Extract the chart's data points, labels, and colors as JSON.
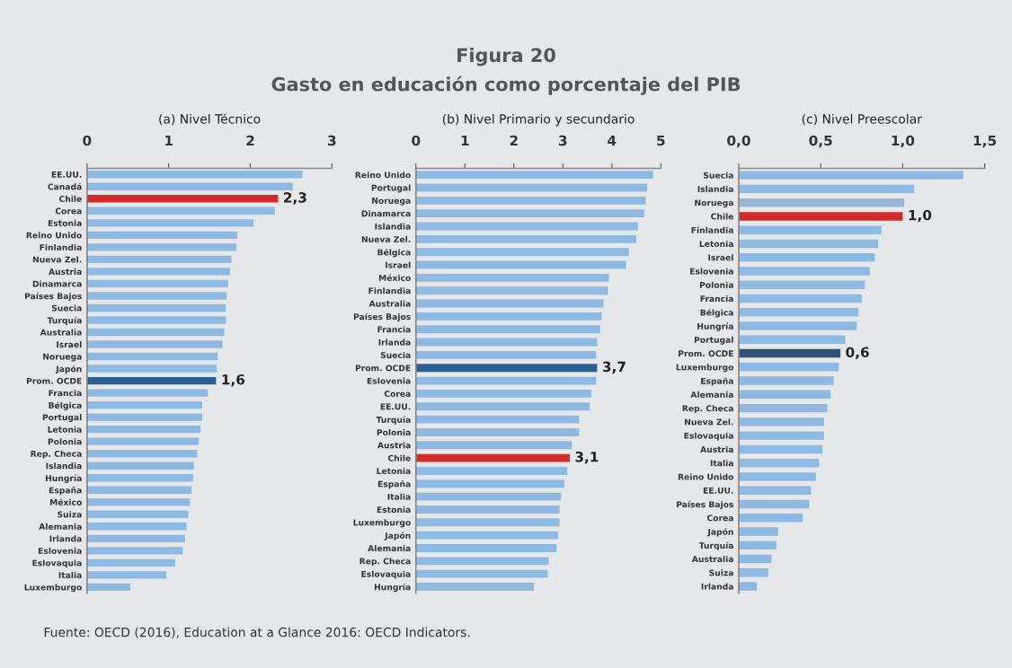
{
  "chart_data": [
    {
      "type": "other",
      "title": "Figura 20",
      "subtitle": "Gasto en educación como porcentaje del PIB",
      "annotations": [
        "Fuente: OECD (2016), Education at a Glance 2016: OECD Indicators."
      ]
    },
    {
      "type": "bar",
      "orientation": "horizontal",
      "title": "(a) Nivel Técnico",
      "grid": false,
      "xlim": [
        0,
        3
      ],
      "xticks": [
        0,
        1,
        2,
        3
      ],
      "categories": [
        "EE.UU.",
        "Canadá",
        "Chile",
        "Corea",
        "Estonia",
        "Reino Unido",
        "Finlandia",
        "Nueva Zel.",
        "Austria",
        "Dinamarca",
        "Países Bajos",
        "Suecia",
        "Turquía",
        "Australia",
        "Israel",
        "Noruega",
        "Japón",
        "Prom. OCDE",
        "Francia",
        "Bélgica",
        "Portugal",
        "Letonia",
        "Polonia",
        "Rep. Checa",
        "Islandia",
        "Hungría",
        "España",
        "México",
        "Suiza",
        "Alemania",
        "Irlanda",
        "Eslovenia",
        "Eslovaquia",
        "Italia",
        "Luxemburgo"
      ],
      "values": [
        2.64,
        2.52,
        2.34,
        2.3,
        2.04,
        1.84,
        1.83,
        1.77,
        1.75,
        1.73,
        1.71,
        1.7,
        1.7,
        1.68,
        1.66,
        1.6,
        1.59,
        1.58,
        1.48,
        1.41,
        1.41,
        1.39,
        1.37,
        1.35,
        1.31,
        1.3,
        1.28,
        1.26,
        1.24,
        1.22,
        1.2,
        1.17,
        1.08,
        0.97,
        0.53
      ],
      "colors": [
        "#8db9e3",
        "#8db9e3",
        "#d42a2a",
        "#8db9e3",
        "#8db9e3",
        "#8db9e3",
        "#8db9e3",
        "#8db9e3",
        "#8db9e3",
        "#8db9e3",
        "#8db9e3",
        "#8db9e3",
        "#8db9e3",
        "#8db9e3",
        "#8db9e3",
        "#8db9e3",
        "#8db9e3",
        "#2a6192",
        "#8db9e3",
        "#8db9e3",
        "#8db9e3",
        "#8db9e3",
        "#8db9e3",
        "#8db9e3",
        "#8db9e3",
        "#8db9e3",
        "#8db9e3",
        "#8db9e3",
        "#8db9e3",
        "#8db9e3",
        "#8db9e3",
        "#8db9e3",
        "#8db9e3",
        "#8db9e3",
        "#8db9e3"
      ],
      "value_labels": [
        null,
        null,
        "2,3",
        null,
        null,
        null,
        null,
        null,
        null,
        null,
        null,
        null,
        null,
        null,
        null,
        null,
        null,
        "1,6",
        null,
        null,
        null,
        null,
        null,
        null,
        null,
        null,
        null,
        null,
        null,
        null,
        null,
        null,
        null,
        null,
        null
      ]
    },
    {
      "type": "bar",
      "orientation": "horizontal",
      "title": "(b) Nivel Primario y secundario",
      "grid": false,
      "xlim": [
        0,
        5
      ],
      "xticks": [
        0,
        1,
        2,
        3,
        4,
        5
      ],
      "categories": [
        "Reino Unido",
        "Portugal",
        "Noruega",
        "Dinamarca",
        "Islandia",
        "Nueva Zel.",
        "Bélgica",
        "Israel",
        "México",
        "Finlandia",
        "Australia",
        "Países Bajos",
        "Francia",
        "Irlanda",
        "Suecia",
        "Prom. OCDE",
        "Eslovenia",
        "Corea",
        "EE.UU.",
        "Turquía",
        "Polonia",
        "Austria",
        "Chile",
        "Letonia",
        "España",
        "Italia",
        "Estonia",
        "Luxemburgo",
        "Japón",
        "Alemania",
        "Rep. Checa",
        "Eslovaquia",
        "Hungría"
      ],
      "values": [
        4.84,
        4.72,
        4.69,
        4.66,
        4.53,
        4.5,
        4.35,
        4.29,
        3.94,
        3.92,
        3.83,
        3.79,
        3.76,
        3.7,
        3.68,
        3.7,
        3.68,
        3.58,
        3.55,
        3.33,
        3.33,
        3.18,
        3.14,
        3.09,
        3.03,
        2.96,
        2.93,
        2.93,
        2.9,
        2.87,
        2.71,
        2.69,
        2.41
      ],
      "colors": [
        "#8db9e3",
        "#8db9e3",
        "#8db9e3",
        "#8db9e3",
        "#8db9e3",
        "#8db9e3",
        "#8db9e3",
        "#8db9e3",
        "#8db9e3",
        "#8db9e3",
        "#8db9e3",
        "#8db9e3",
        "#8db9e3",
        "#8db9e3",
        "#8db9e3",
        "#2a6192",
        "#8db9e3",
        "#8db9e3",
        "#8db9e3",
        "#8db9e3",
        "#8db9e3",
        "#8db9e3",
        "#d42a2a",
        "#8db9e3",
        "#8db9e3",
        "#8db9e3",
        "#8db9e3",
        "#8db9e3",
        "#8db9e3",
        "#8db9e3",
        "#8db9e3",
        "#8db9e3",
        "#8db9e3"
      ],
      "value_labels": [
        null,
        null,
        null,
        null,
        null,
        null,
        null,
        null,
        null,
        null,
        null,
        null,
        null,
        null,
        null,
        "3,7",
        null,
        null,
        null,
        null,
        null,
        null,
        "3,1",
        null,
        null,
        null,
        null,
        null,
        null,
        null,
        null,
        null,
        null
      ]
    },
    {
      "type": "bar",
      "orientation": "horizontal",
      "title": "(c) Nivel Preescolar",
      "grid": false,
      "xlim": [
        0,
        1.5
      ],
      "xticks": [
        {
          "value": 0,
          "label": "0,0"
        },
        {
          "value": 0.5,
          "label": "0,5"
        },
        {
          "value": 1,
          "label": "1,0"
        },
        {
          "value": 1.5,
          "label": "1,5"
        }
      ],
      "categories": [
        "Suecia",
        "Islandia",
        "Noruega",
        "Chile",
        "Finlandia",
        "Letonia",
        "Israel",
        "Eslovenia",
        "Polonia",
        "Francia",
        "Bélgica",
        "Hungría",
        "Portugal",
        "Prom. OCDE",
        "Luxemburgo",
        "España",
        "Alemania",
        "Rep. Checa",
        "Nueva Zel.",
        "Eslovaquia",
        "Austria",
        "Italia",
        "Reino Unido",
        "EE.UU.",
        "Países Bajos",
        "Corea",
        "Japón",
        "Turquía",
        "Australia",
        "Suiza",
        "Irlanda"
      ],
      "values": [
        1.37,
        1.07,
        1.01,
        1.0,
        0.87,
        0.85,
        0.83,
        0.8,
        0.77,
        0.75,
        0.73,
        0.72,
        0.65,
        0.62,
        0.61,
        0.58,
        0.56,
        0.54,
        0.52,
        0.52,
        0.51,
        0.49,
        0.47,
        0.44,
        0.43,
        0.39,
        0.24,
        0.23,
        0.2,
        0.18,
        0.11
      ],
      "colors": [
        "#8db9e3",
        "#8db9e3",
        "#94b6d8",
        "#d42a2a",
        "#8db9e3",
        "#8db9e3",
        "#8db9e3",
        "#8db9e3",
        "#8db9e3",
        "#8db9e3",
        "#8db9e3",
        "#8db9e3",
        "#8db9e3",
        "#2d5273",
        "#8db9e3",
        "#8db9e3",
        "#8db9e3",
        "#94b6d8",
        "#8db9e3",
        "#8db9e3",
        "#8db9e3",
        "#8db9e3",
        "#8db9e3",
        "#8db9e3",
        "#8db9e3",
        "#8db9e3",
        "#8db9e3",
        "#8db9e3",
        "#8db9e3",
        "#8db9e3",
        "#8db9e3"
      ],
      "value_labels": [
        null,
        null,
        null,
        "1,0",
        null,
        null,
        null,
        null,
        null,
        null,
        null,
        null,
        null,
        "0,6",
        null,
        null,
        null,
        null,
        null,
        null,
        null,
        null,
        null,
        null,
        null,
        null,
        null,
        null,
        null,
        null,
        null
      ]
    }
  ]
}
